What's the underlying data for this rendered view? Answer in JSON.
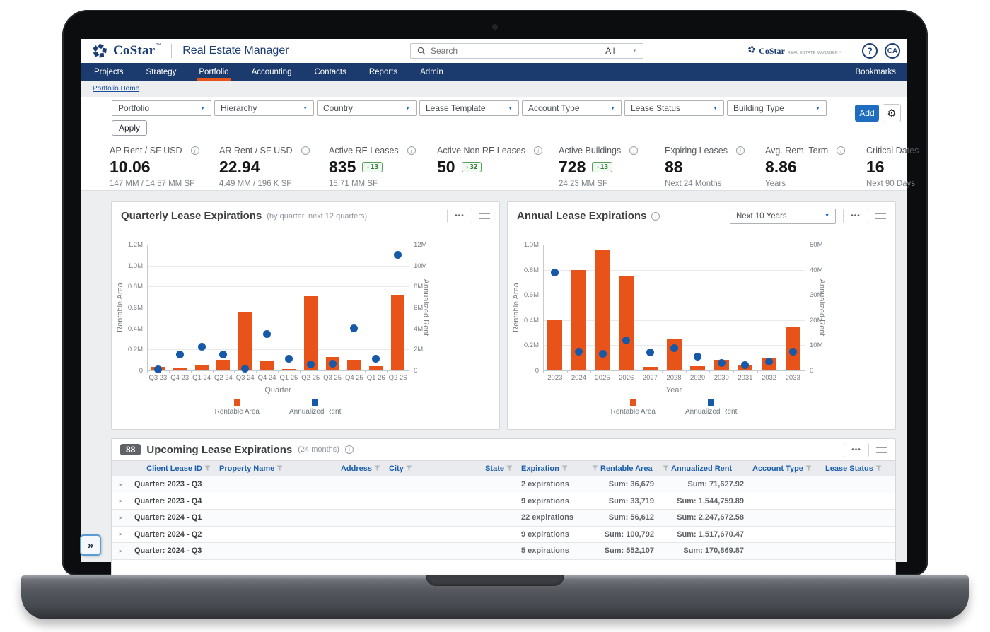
{
  "icons": {
    "caret_down": "▼",
    "menu": "•••",
    "gear": "⚙",
    "panel_expand": "»",
    "row_expand": "▸",
    "up_arrow": "↑",
    "info": "i",
    "help_q": "?",
    "search_scope_caret": "▾"
  },
  "colors": {
    "navy": "#1b3a6d",
    "orange": "#e8531a",
    "dot_blue": "#1559a8",
    "link_blue": "#1a5dab",
    "button_blue": "#1f6dc1",
    "badge_green": "#2f7d33"
  },
  "header": {
    "brand": "CoStar",
    "brand_tm": "™",
    "product": "Real Estate Manager",
    "search_placeholder": "Search",
    "search_scope": "All",
    "mini_brand": "CoStar",
    "mini_suffix": "REAL ESTATE MANAGER™",
    "help": "?",
    "avatar": "CA"
  },
  "nav": {
    "items": [
      "Projects",
      "Strategy",
      "Portfolio",
      "Accounting",
      "Contacts",
      "Reports",
      "Admin"
    ],
    "active": "Portfolio",
    "right": "Bookmarks"
  },
  "breadcrumb": "Portfolio Home",
  "filters": {
    "dropdowns": [
      "Portfolio",
      "Hierarchy",
      "Country",
      "Lease Template",
      "Account Type",
      "Lease Status",
      "Building Type"
    ],
    "apply_label": "Apply",
    "add_label": "Add"
  },
  "kpis": [
    {
      "label": "AP Rent / SF USD",
      "info": true,
      "value": "10.06",
      "sub": "147 MM / 14.57 MM SF"
    },
    {
      "label": "AR Rent / SF USD",
      "info": true,
      "value": "22.94",
      "sub": "4.49 MM / 196 K SF"
    },
    {
      "label": "Active RE Leases",
      "info": true,
      "value": "835",
      "badge": "13",
      "sub": "15.71 MM SF"
    },
    {
      "label": "Active Non RE Leases",
      "info": true,
      "value": "50",
      "badge": "32",
      "sub": ""
    },
    {
      "label": "Active Buildings",
      "info": true,
      "value": "728",
      "badge": "13",
      "sub": "24.23 MM SF"
    },
    {
      "label": "Expiring Leases",
      "info": true,
      "value": "88",
      "sub": "Next 24 Months"
    },
    {
      "label": "Avg. Rem. Term",
      "info": true,
      "value": "8.86",
      "sub": "Years"
    },
    {
      "label": "Critical Dates",
      "info": false,
      "value": "16",
      "sub": "Next 90 Days"
    }
  ],
  "chart_data": [
    {
      "type": "bar",
      "title": "Quarterly Lease Expirations",
      "subtitle": "(by quarter, next 12 quarters)",
      "categories": [
        "Q3 23",
        "Q4 23",
        "Q1 24",
        "Q2 24",
        "Q3 24",
        "Q4 24",
        "Q1 25",
        "Q2 25",
        "Q3 25",
        "Q4 25",
        "Q1 26",
        "Q2 26"
      ],
      "series": [
        {
          "name": "Rentable Area",
          "type": "bar",
          "axis": "left",
          "color": "#e8531a",
          "values": [
            35000,
            30000,
            50000,
            100000,
            550000,
            90000,
            15000,
            710000,
            125000,
            100000,
            40000,
            715000
          ]
        },
        {
          "name": "Annualized Rent",
          "type": "scatter",
          "axis": "right",
          "color": "#1559a8",
          "values": [
            100000,
            1550000,
            2250000,
            1500000,
            200000,
            3450000,
            1100000,
            550000,
            650000,
            4000000,
            1100000,
            11000000
          ]
        }
      ],
      "xlabel": "Quarter",
      "ylabel_left": "Rentable Area",
      "ylabel_right": "Annualized Rent",
      "ylim_left": [
        0,
        1200000
      ],
      "ylim_right": [
        0,
        12000000
      ],
      "yticks_left": [
        "0",
        "0.2M",
        "0.4M",
        "0.6M",
        "0.8M",
        "1.0M",
        "1.2M"
      ],
      "yticks_right": [
        "0",
        "2M",
        "4M",
        "6M",
        "8M",
        "10M",
        "12M"
      ],
      "grid": true,
      "legend_position": "bottom"
    },
    {
      "type": "bar",
      "title": "Annual Lease Expirations",
      "subtitle": "",
      "range_selector": "Next 10 Years",
      "categories": [
        "2023",
        "2024",
        "2025",
        "2026",
        "2027",
        "2028",
        "2029",
        "2030",
        "2031",
        "2032",
        "2033"
      ],
      "series": [
        {
          "name": "Rentable Area",
          "type": "bar",
          "axis": "left",
          "color": "#e8531a",
          "values": [
            405000,
            800000,
            960000,
            750000,
            30000,
            255000,
            35000,
            85000,
            40000,
            100000,
            350000
          ]
        },
        {
          "name": "Annualized Rent",
          "type": "scatter",
          "axis": "right",
          "color": "#1559a8",
          "values": [
            39000000,
            7500000,
            6500000,
            12000000,
            7300000,
            8800000,
            5500000,
            3000000,
            2000000,
            3500000,
            7500000
          ]
        }
      ],
      "xlabel": "Year",
      "ylabel_left": "Rentable Area",
      "ylabel_right": "Annualized Rent",
      "ylim_left": [
        0,
        1000000
      ],
      "ylim_right": [
        0,
        50000000
      ],
      "yticks_left": [
        "0",
        "0.2M",
        "0.4M",
        "0.6M",
        "0.8M",
        "1.0M"
      ],
      "yticks_right": [
        "0",
        "10M",
        "20M",
        "30M",
        "40M",
        "50M"
      ],
      "grid": true,
      "legend_position": "bottom"
    }
  ],
  "table": {
    "badge": "88",
    "title": "Upcoming Lease Expirations",
    "subtitle": "(24 months)",
    "columns": [
      "Client Lease ID",
      "Property Name",
      "Address",
      "City",
      "State",
      "Expiration",
      "Rentable Area",
      "Annualized Rent",
      "Account Type",
      "Lease Status"
    ],
    "rows": [
      {
        "group": "Quarter: 2023 - Q3",
        "expirations": "2 expirations",
        "rentable_area_sum": "Sum: 36,679",
        "annualized_rent_sum": "Sum: 71,627.92"
      },
      {
        "group": "Quarter: 2023 - Q4",
        "expirations": "9 expirations",
        "rentable_area_sum": "Sum: 33,719",
        "annualized_rent_sum": "Sum: 1,544,759.89"
      },
      {
        "group": "Quarter: 2024 - Q1",
        "expirations": "22 expirations",
        "rentable_area_sum": "Sum: 56,612",
        "annualized_rent_sum": "Sum: 2,247,672.58"
      },
      {
        "group": "Quarter: 2024 - Q2",
        "expirations": "9 expirations",
        "rentable_area_sum": "Sum: 100,792",
        "annualized_rent_sum": "Sum: 1,517,670.47"
      },
      {
        "group": "Quarter: 2024 - Q3",
        "expirations": "5 expirations",
        "rentable_area_sum": "Sum: 552,107",
        "annualized_rent_sum": "Sum: 170,869.87"
      }
    ]
  }
}
